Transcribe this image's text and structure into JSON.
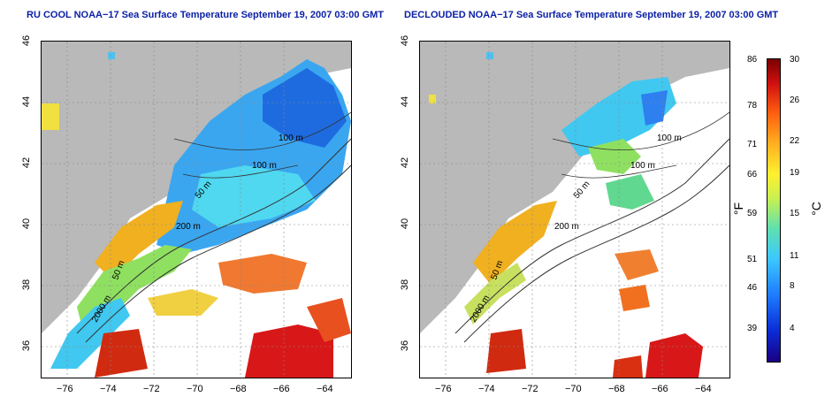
{
  "titles": {
    "left": "RU COOL NOAA−17 Sea Surface Temperature September 19, 2007 03:00 GMT",
    "right": "DECLOUDED NOAA−17 Sea Surface Temperature September 19, 2007 03:00 GMT"
  },
  "x_ticks": [
    "−76",
    "−74",
    "−72",
    "−70",
    "−68",
    "−66",
    "−64"
  ],
  "y_ticks": [
    "46",
    "44",
    "42",
    "40",
    "38",
    "36"
  ],
  "contours": {
    "c100a": "100 m",
    "c100b": "100 m",
    "c50": "50 m",
    "c200": "200 m",
    "c50s": "50 m",
    "c2000": "2000 m"
  },
  "colorbar": {
    "fahrenheit": [
      "86",
      "78",
      "71",
      "66",
      "59",
      "51",
      "46",
      "39"
    ],
    "celsius": [
      "30",
      "26",
      "22",
      "19",
      "15",
      "11",
      "8",
      "4"
    ],
    "unit_f": "°F",
    "unit_c": "°C"
  },
  "colors": {
    "land": "#b9b9b9",
    "cloud": "#ffffff",
    "title": "#0a1fa6"
  }
}
